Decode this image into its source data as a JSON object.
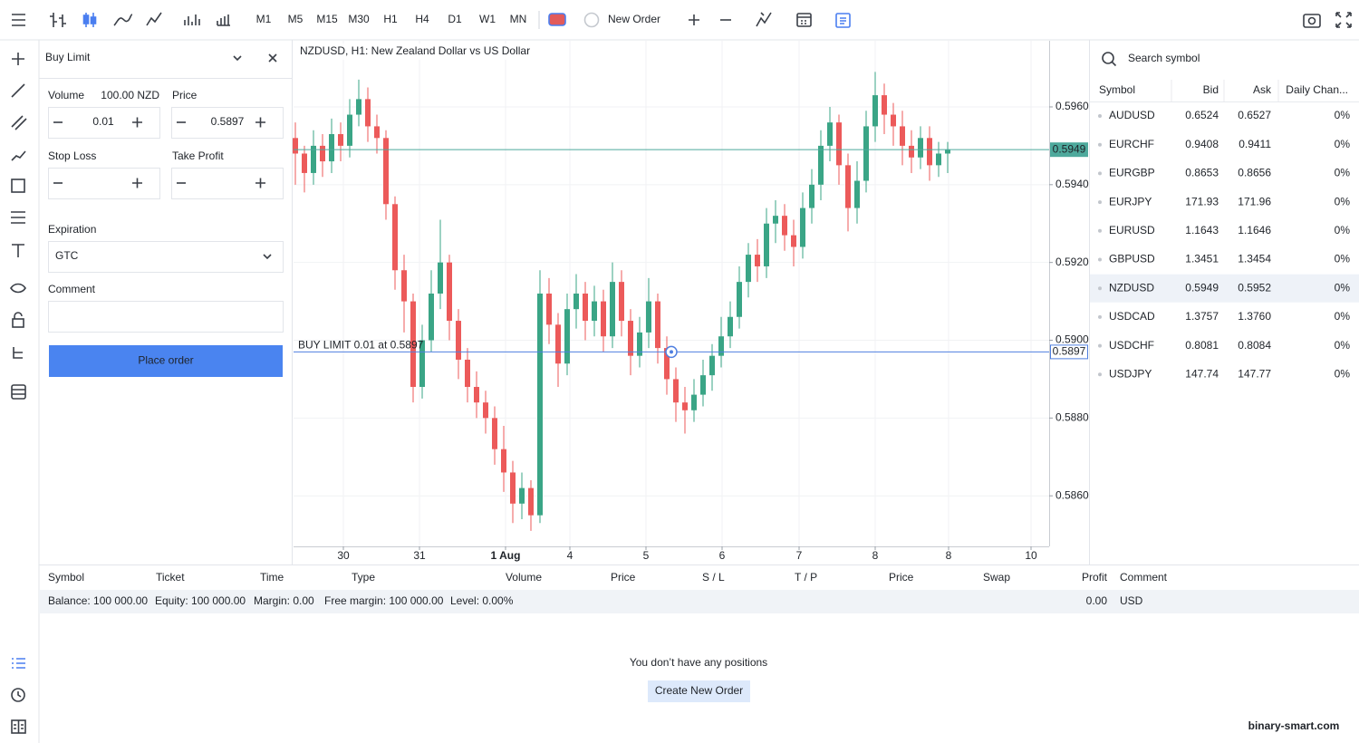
{
  "toolbar": {
    "timeframes": [
      "M1",
      "M5",
      "M15",
      "M30",
      "H1",
      "H4",
      "D1",
      "W1",
      "MN"
    ],
    "active_timeframe": 4,
    "new_order": "New Order"
  },
  "order_panel": {
    "order_type": "Buy Limit",
    "volume_label": "Volume",
    "volume_units": "100.00 NZD",
    "volume": "0.01",
    "price_label": "Price",
    "price": "0.5897",
    "stop_loss_label": "Stop Loss",
    "take_profit_label": "Take Profit",
    "expiration_label": "Expiration",
    "expiration": "GTC",
    "comment_label": "Comment",
    "button": "Place order"
  },
  "chart_data": {
    "type": "candlestick",
    "title": "NZDUSD, H1: New Zealand Dollar vs US Dollar",
    "open": [
      0.5952,
      0.5948,
      0.5943,
      0.595,
      0.5946,
      0.5953,
      0.595,
      0.5958,
      0.5962,
      0.5955,
      0.5952,
      0.5935,
      0.5918,
      0.591,
      0.5888,
      0.59,
      0.5912,
      0.592,
      0.5905,
      0.5895,
      0.5888,
      0.5884,
      0.588,
      0.5872,
      0.5866,
      0.5858,
      0.5862,
      0.5855,
      0.5912,
      0.5904,
      0.5894,
      0.5908,
      0.5912,
      0.5905,
      0.591,
      0.5901,
      0.5915,
      0.5905,
      0.5896,
      0.5902,
      0.591,
      0.5898,
      0.589,
      0.5884,
      0.5882,
      0.5886,
      0.5891,
      0.5896,
      0.5901,
      0.5906,
      0.5915,
      0.5922,
      0.5919,
      0.593,
      0.5932,
      0.5927,
      0.5924,
      0.5934,
      0.594,
      0.595,
      0.5956,
      0.5945,
      0.5934,
      0.5941,
      0.5955,
      0.5963,
      0.5958,
      0.5955,
      0.595,
      0.5947,
      0.5952,
      0.5945,
      0.5948
    ],
    "high": [
      0.5956,
      0.595,
      0.5954,
      0.5953,
      0.5957,
      0.5956,
      0.5962,
      0.5967,
      0.5965,
      0.5958,
      0.5954,
      0.5937,
      0.5922,
      0.5912,
      0.5904,
      0.5918,
      0.5931,
      0.5922,
      0.5908,
      0.5898,
      0.5892,
      0.5887,
      0.5883,
      0.5878,
      0.5869,
      0.5866,
      0.5864,
      0.5918,
      0.5916,
      0.5907,
      0.5912,
      0.5917,
      0.5915,
      0.5914,
      0.5913,
      0.592,
      0.5918,
      0.5908,
      0.5906,
      0.5916,
      0.5912,
      0.5901,
      0.5893,
      0.5888,
      0.589,
      0.5895,
      0.5899,
      0.5906,
      0.591,
      0.5919,
      0.5925,
      0.5926,
      0.5934,
      0.5936,
      0.5935,
      0.5931,
      0.5938,
      0.5944,
      0.5954,
      0.596,
      0.5958,
      0.5948,
      0.5946,
      0.5959,
      0.5969,
      0.5966,
      0.5961,
      0.5959,
      0.5954,
      0.5955,
      0.5955,
      0.5951,
      0.5951
    ],
    "low": [
      0.594,
      0.5938,
      0.594,
      0.5942,
      0.5943,
      0.5946,
      0.5947,
      0.5955,
      0.5951,
      0.5948,
      0.5931,
      0.5913,
      0.5902,
      0.5884,
      0.5885,
      0.5897,
      0.5908,
      0.59,
      0.589,
      0.5884,
      0.588,
      0.5876,
      0.5868,
      0.5861,
      0.5853,
      0.5854,
      0.5851,
      0.5853,
      0.5899,
      0.5888,
      0.5891,
      0.5903,
      0.59,
      0.5901,
      0.5897,
      0.5898,
      0.5901,
      0.5891,
      0.5893,
      0.5898,
      0.5894,
      0.5886,
      0.5879,
      0.5876,
      0.5879,
      0.5883,
      0.5887,
      0.5893,
      0.5898,
      0.5903,
      0.5911,
      0.5915,
      0.5916,
      0.5925,
      0.5923,
      0.5919,
      0.5921,
      0.593,
      0.5936,
      0.5946,
      0.594,
      0.5928,
      0.593,
      0.5938,
      0.5951,
      0.5953,
      0.595,
      0.5945,
      0.5943,
      0.5944,
      0.5941,
      0.5942,
      0.5943
    ],
    "close": [
      0.5948,
      0.5943,
      0.595,
      0.5946,
      0.5953,
      0.595,
      0.5958,
      0.5962,
      0.5955,
      0.5952,
      0.5935,
      0.5918,
      0.591,
      0.5888,
      0.59,
      0.5912,
      0.592,
      0.5905,
      0.5895,
      0.5888,
      0.5884,
      0.588,
      0.5872,
      0.5866,
      0.5858,
      0.5862,
      0.5855,
      0.5912,
      0.5904,
      0.5894,
      0.5908,
      0.5912,
      0.5905,
      0.591,
      0.5901,
      0.5915,
      0.5905,
      0.5896,
      0.5902,
      0.591,
      0.5898,
      0.589,
      0.5884,
      0.5882,
      0.5886,
      0.5891,
      0.5896,
      0.5901,
      0.5906,
      0.5915,
      0.5922,
      0.5919,
      0.593,
      0.5932,
      0.5927,
      0.5924,
      0.5934,
      0.594,
      0.595,
      0.5956,
      0.5945,
      0.5934,
      0.5941,
      0.5955,
      0.5963,
      0.5958,
      0.5955,
      0.595,
      0.5947,
      0.5952,
      0.5945,
      0.5948,
      0.5949
    ],
    "up_color": "#3aa586",
    "down_color": "#ec5a5a",
    "xlim": [
      -0.2,
      83.2
    ],
    "xticks": [
      {
        "value": 5.3,
        "label": "30"
      },
      {
        "value": 13.7,
        "label": "31"
      },
      {
        "value": 23.2,
        "label": "1 Aug"
      },
      {
        "value": 30.3,
        "label": "4"
      },
      {
        "value": 38.7,
        "label": "5"
      },
      {
        "value": 47.1,
        "label": "6"
      },
      {
        "value": 55.6,
        "label": "7"
      },
      {
        "value": 64,
        "label": "8"
      },
      {
        "value": 72.1,
        "label": "8"
      },
      {
        "value": 81.2,
        "label": "10"
      }
    ],
    "ylim": [
      0.5847,
      0.5977
    ],
    "yticks": [
      {
        "value": 0.586,
        "label": "0.5860"
      },
      {
        "value": 0.588,
        "label": "0.5880"
      },
      {
        "value": 0.59,
        "label": "0.5900"
      },
      {
        "value": 0.592,
        "label": "0.5920"
      },
      {
        "value": 0.594,
        "label": "0.5940"
      },
      {
        "value": 0.596,
        "label": "0.5960"
      }
    ],
    "grid": true,
    "current_price": 0.5949,
    "current_price_color": "#4ea99c",
    "order_line": {
      "label": "BUY LIMIT 0.01 at 0.5897",
      "price": 0.5897,
      "color": "#4f7fe0"
    }
  },
  "watchlist": {
    "search_placeholder": "Search symbol",
    "columns": [
      "Symbol",
      "Bid",
      "Ask",
      "Daily Chan..."
    ],
    "rows": [
      [
        "AUDUSD",
        "0.6524",
        "0.6527",
        "0%"
      ],
      [
        "EURCHF",
        "0.9408",
        "0.9411",
        "0%"
      ],
      [
        "EURGBP",
        "0.8653",
        "0.8656",
        "0%"
      ],
      [
        "EURJPY",
        "171.93",
        "171.96",
        "0%"
      ],
      [
        "EURUSD",
        "1.1643",
        "1.1646",
        "0%"
      ],
      [
        "GBPUSD",
        "1.3451",
        "1.3454",
        "0%"
      ],
      [
        "NZDUSD",
        "0.5949",
        "0.5952",
        "0%"
      ],
      [
        "USDCAD",
        "1.3757",
        "1.3760",
        "0%"
      ],
      [
        "USDCHF",
        "0.8081",
        "0.8084",
        "0%"
      ],
      [
        "USDJPY",
        "147.74",
        "147.77",
        "0%"
      ]
    ],
    "selected_row": 6
  },
  "positions": {
    "columns": [
      "Symbol",
      "Ticket",
      "Time",
      "Type",
      "Volume",
      "Price",
      "S / L",
      "T / P",
      "Price",
      "Swap",
      "Profit",
      "Comment"
    ],
    "summary": [
      "Balance: 100 000.00",
      "Equity: 100 000.00",
      "Margin: 0.00",
      "Free margin: 100 000.00",
      "Level: 0.00%"
    ],
    "profit": "0.00",
    "currency": "USD",
    "empty_message": "You don’t have any positions",
    "button": "Create New Order"
  },
  "watermark": "binary-smart.com"
}
